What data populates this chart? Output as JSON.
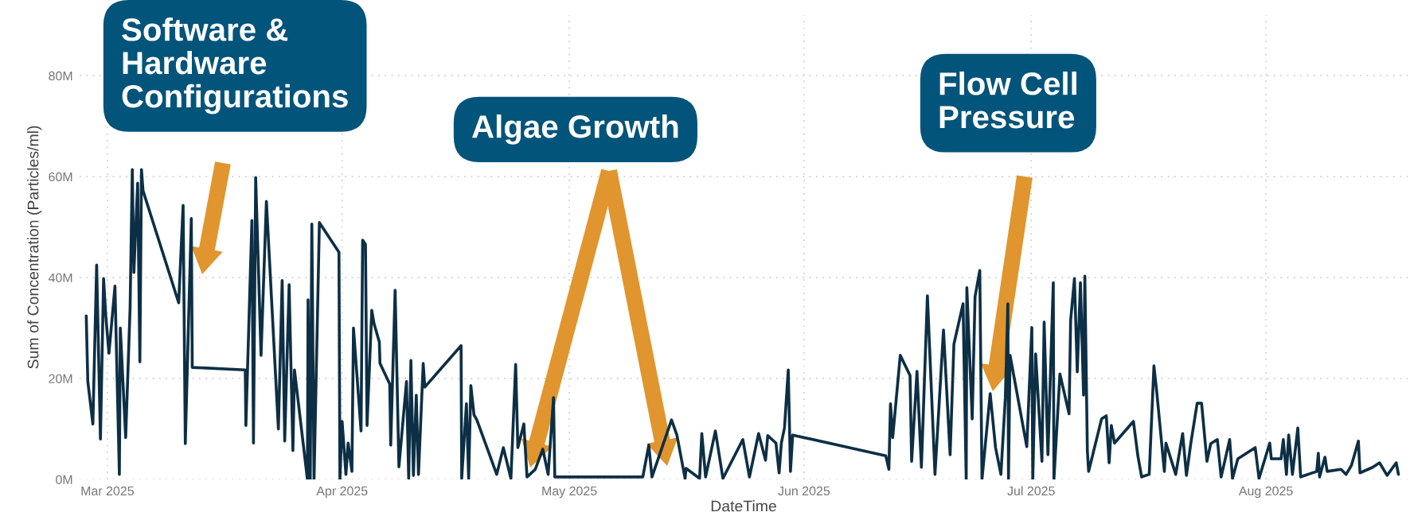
{
  "chart_data": {
    "type": "line",
    "xlabel": "DateTime",
    "ylabel": "Sum of Concentration (Particles/ml)",
    "x": [
      "2025-02-26T05:00",
      "2025-02-26T10:00",
      "2025-02-27T02:00",
      "2025-02-27T14:00",
      "2025-02-28T02:00",
      "2025-02-28T12:00",
      "2025-02-28T19:00",
      "2025-03-01T05:00",
      "2025-03-02T00:00",
      "2025-03-02T14:00",
      "2025-03-02T17:00",
      "2025-03-03T10:00",
      "2025-03-04T00:00",
      "2025-03-04T07:00",
      "2025-03-04T12:00",
      "2025-03-05T00:00",
      "2025-03-05T07:00",
      "2025-03-05T12:00",
      "2025-03-05T17:00",
      "2025-03-10T10:00",
      "2025-03-11T00:00",
      "2025-03-11T07:00",
      "2025-03-12T02:00",
      "2025-03-12T05:00",
      "2025-03-19T05:00",
      "2025-03-19T07:00",
      "2025-03-20T02:00",
      "2025-03-20T07:00",
      "2025-03-20T14:00",
      "2025-03-21T07:00",
      "2025-03-22T00:00",
      "2025-03-23T14:00",
      "2025-03-24T02:00",
      "2025-03-24T10:00",
      "2025-03-25T00:00",
      "2025-03-25T12:00",
      "2025-03-25T17:00",
      "2025-03-27T10:00",
      "2025-03-27T12:00",
      "2025-03-27T19:00",
      "2025-03-28T00:00",
      "2025-03-28T07:00",
      "2025-03-29T00:00",
      "2025-03-31T14:00",
      "2025-03-31T17:00",
      "2025-04-01T00:00",
      "2025-04-01T12:00",
      "2025-04-01T19:00",
      "2025-04-02T07:00",
      "2025-04-02T12:00",
      "2025-04-03T12:00",
      "2025-04-03T17:00",
      "2025-04-04T02:00",
      "2025-04-04T07:00",
      "2025-04-04T22:00",
      "2025-04-05T05:00",
      "2025-04-05T22:00",
      "2025-04-06T00:00",
      "2025-04-07T07:00",
      "2025-04-07T10:00",
      "2025-04-08T00:00",
      "2025-04-08T12:00",
      "2025-04-09T12:00",
      "2025-04-09T19:00",
      "2025-04-10T02:00",
      "2025-04-10T10:00",
      "2025-04-10T19:00",
      "2025-04-11T02:00",
      "2025-04-11T17:00",
      "2025-04-11T22:00",
      "2025-04-16T17:00",
      "2025-04-16T19:00",
      "2025-04-17T10:00",
      "2025-04-17T17:00",
      "2025-04-18T00:00",
      "2025-04-18T10:00",
      "2025-04-18T19:00",
      "2025-04-21T10:00",
      "2025-04-22T07:00",
      "2025-04-23T07:00",
      "2025-04-23T22:00",
      "2025-04-24T05:00",
      "2025-04-25T00:00",
      "2025-04-25T10:00",
      "2025-04-26T12:00",
      "2025-04-27T12:00",
      "2025-04-28T05:00",
      "2025-04-28T22:00",
      "2025-04-29T02:00",
      "2025-05-10T17:00",
      "2025-05-11T12:00",
      "2025-05-11T22:00",
      "2025-05-14T12:00",
      "2025-05-15T05:00",
      "2025-05-16T07:00",
      "2025-05-16T10:00",
      "2025-05-18T05:00",
      "2025-05-18T12:00",
      "2025-05-19T00:00",
      "2025-05-20T07:00",
      "2025-05-21T07:00",
      "2025-05-23T22:00",
      "2025-05-24T19:00",
      "2025-05-26T00:00",
      "2025-05-26T22:00",
      "2025-05-27T05:00",
      "2025-05-28T07:00",
      "2025-05-28T17:00",
      "2025-05-29T00:00",
      "2025-05-29T10:00",
      "2025-05-29T22:00",
      "2025-05-30T05:00",
      "2025-05-30T12:00",
      "2025-06-11T19:00",
      "2025-06-12T05:00",
      "2025-06-12T10:00",
      "2025-06-12T17:00",
      "2025-06-13T17:00",
      "2025-06-15T00:00",
      "2025-06-15T05:00",
      "2025-06-15T22:00",
      "2025-06-16T12:00",
      "2025-06-17T07:00",
      "2025-06-18T07:00",
      "2025-06-19T10:00",
      "2025-06-20T07:00",
      "2025-06-20T19:00",
      "2025-06-22T00:00",
      "2025-06-22T10:00",
      "2025-06-22T12:00",
      "2025-06-23T05:00",
      "2025-06-23T14:00",
      "2025-06-24T05:00",
      "2025-06-24T12:00",
      "2025-06-25T14:00",
      "2025-06-26T07:00",
      "2025-06-27T00:00",
      "2025-06-27T14:00",
      "2025-06-27T22:00",
      "2025-06-28T00:00",
      "2025-06-28T05:00",
      "2025-06-30T10:00",
      "2025-07-01T02:00",
      "2025-07-01T05:00",
      "2025-07-01T14:00",
      "2025-07-02T10:00",
      "2025-07-02T17:00",
      "2025-07-03T05:00",
      "2025-07-03T22:00",
      "2025-07-04T00:00",
      "2025-07-04T19:00",
      "2025-07-06T00:00",
      "2025-07-06T05:00",
      "2025-07-06T17:00",
      "2025-07-07T02:00",
      "2025-07-07T12:00",
      "2025-07-07T22:00",
      "2025-07-08T02:00",
      "2025-07-08T10:00",
      "2025-07-08T14:00",
      "2025-07-10T07:00",
      "2025-07-10T22:00",
      "2025-07-11T07:00",
      "2025-07-11T14:00",
      "2025-07-12T00:00",
      "2025-07-14T12:00",
      "2025-07-15T02:00",
      "2025-07-15T14:00",
      "2025-07-16T14:00",
      "2025-07-17T05:00",
      "2025-07-17T14:00",
      "2025-07-18T14:00",
      "2025-07-18T19:00",
      "2025-07-20T02:00",
      "2025-07-21T00:00",
      "2025-07-21T12:00",
      "2025-07-22T02:00",
      "2025-07-22T22:00",
      "2025-07-23T12:00",
      "2025-07-24T05:00",
      "2025-07-24T17:00",
      "2025-07-25T14:00",
      "2025-07-26T02:00",
      "2025-07-27T05:00",
      "2025-07-27T14:00",
      "2025-07-28T07:00",
      "2025-07-30T14:00",
      "2025-07-31T02:00",
      "2025-08-01T12:00",
      "2025-08-01T17:00",
      "2025-08-03T00:00",
      "2025-08-03T07:00",
      "2025-08-03T17:00",
      "2025-08-04T00:00",
      "2025-08-04T12:00",
      "2025-08-05T05:00",
      "2025-08-05T14:00",
      "2025-08-07T17:00",
      "2025-08-07T22:00",
      "2025-08-08T02:00",
      "2025-08-08T19:00",
      "2025-08-09T02:00",
      "2025-08-10T22:00",
      "2025-08-11T14:00",
      "2025-08-12T07:00",
      "2025-08-13T05:00",
      "2025-08-13T10:00",
      "2025-08-15T02:00",
      "2025-08-16T00:00",
      "2025-08-17T00:00",
      "2025-08-18T05:00",
      "2025-08-18T12:00"
    ],
    "series": [
      {
        "color": "#0d2f45",
        "values": [
          32.4,
          19.4,
          11,
          42.5,
          8,
          39.8,
          32.4,
          25,
          38.3,
          1,
          30,
          8.3,
          34,
          61.4,
          41,
          58.7,
          23.3,
          61.4,
          57.2,
          35,
          54.3,
          7.1,
          51.7,
          22.2,
          21.7,
          10.7,
          51.3,
          7.2,
          59.8,
          24.6,
          55.1,
          10,
          39.4,
          7.6,
          38.6,
          5.7,
          21.7,
          0,
          35.6,
          0,
          50.6,
          0,
          50.9,
          45,
          0,
          11.5,
          1,
          7.2,
          1.6,
          30,
          9.6,
          47.4,
          46.6,
          10.7,
          33.5,
          30.9,
          27.2,
          23,
          18.9,
          6.8,
          37.5,
          2.5,
          19.4,
          0.2,
          23.6,
          0.8,
          16.7,
          1,
          23,
          18.3,
          26.5,
          0.2,
          15,
          0.2,
          18.6,
          12.8,
          11.8,
          1,
          6.3,
          0.2,
          22.8,
          6.3,
          11,
          0.5,
          2,
          6,
          1,
          16.2,
          0.5,
          0.5,
          6.8,
          0.5,
          11.8,
          8.8,
          0.2,
          2.2,
          0.2,
          9.1,
          0.5,
          9.6,
          0.2,
          7.9,
          0.5,
          9.1,
          3.8,
          8.7,
          7.2,
          1.3,
          7.2,
          10.2,
          21.7,
          1.6,
          8.8,
          4.7,
          2,
          15,
          8.3,
          24.6,
          20.6,
          3.6,
          21.4,
          2.4,
          36.4,
          1,
          29.6,
          4.9,
          26.8,
          34.8,
          0,
          38,
          12,
          36.2,
          41.4,
          0,
          17,
          6.3,
          1,
          16.2,
          34.8,
          0,
          24.6,
          6.5,
          30.1,
          0,
          24.9,
          3.6,
          31.2,
          4.9,
          39,
          0,
          20.9,
          13,
          31.5,
          39.8,
          21.3,
          39,
          16.7,
          40.3,
          5.7,
          1.6,
          12,
          12.6,
          3.3,
          10.7,
          7.2,
          11.5,
          4.7,
          0.5,
          1,
          22.5,
          17.3,
          1.6,
          7.2,
          1,
          9.1,
          0.8,
          7.2,
          15.1,
          15.1,
          3.6,
          7.1,
          7.9,
          0.5,
          7.9,
          0.2,
          4.1,
          6.3,
          0.2,
          7.2,
          4.1,
          4.1,
          7.9,
          1,
          8.8,
          1,
          10.2,
          0.5,
          1.6,
          5.2,
          0.5,
          4.4,
          1.6,
          2,
          1,
          2.8,
          7.6,
          1.3,
          2.4,
          3.3,
          0.8,
          3.3,
          1
        ]
      }
    ],
    "xlim": [
      "2025-02-25T08:00",
      "2025-08-19T17:00"
    ],
    "xticks": [
      {
        "value": "2025-03-01",
        "label": "Mar 2025"
      },
      {
        "value": "2025-04-01",
        "label": "Apr 2025"
      },
      {
        "value": "2025-05-01",
        "label": "May 2025"
      },
      {
        "value": "2025-06-01",
        "label": "Jun 2025"
      },
      {
        "value": "2025-07-01",
        "label": "Jul 2025"
      },
      {
        "value": "2025-08-01",
        "label": "Aug 2025"
      }
    ],
    "ylim": [
      0,
      92
    ],
    "yticks": [
      {
        "value": 0,
        "label": "0M"
      },
      {
        "value": 20,
        "label": "20M"
      },
      {
        "value": 40,
        "label": "40M"
      },
      {
        "value": 60,
        "label": "60M"
      },
      {
        "value": 80,
        "label": "80M"
      }
    ],
    "grid": true,
    "line_style": "solid",
    "marker": "none",
    "annotations": [
      "Software &\nHardware\nConfigurations",
      "Algae Growth",
      "Flow Cell\nPressure"
    ]
  }
}
